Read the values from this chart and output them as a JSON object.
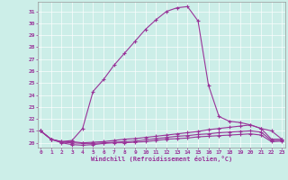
{
  "xlabel": "Windchill (Refroidissement éolien,°C)",
  "background_color": "#cceee8",
  "grid_color": "#aadddd",
  "line_color": "#993399",
  "x_ticks": [
    0,
    1,
    2,
    3,
    4,
    5,
    6,
    7,
    8,
    9,
    10,
    11,
    12,
    13,
    14,
    15,
    16,
    17,
    18,
    19,
    20,
    21,
    22,
    23
  ],
  "y_ticks": [
    20,
    21,
    22,
    23,
    24,
    25,
    26,
    27,
    28,
    29,
    30,
    31
  ],
  "ylim": [
    19.6,
    31.8
  ],
  "xlim": [
    -0.3,
    23.3
  ],
  "curve1": [
    21.0,
    20.3,
    20.1,
    20.2,
    21.2,
    24.3,
    25.3,
    26.5,
    27.5,
    28.5,
    29.5,
    30.3,
    31.0,
    31.3,
    31.4,
    30.2,
    24.8,
    22.2,
    21.8,
    21.7,
    21.5,
    21.2,
    20.3,
    20.3
  ],
  "curve2": [
    21.0,
    20.3,
    20.1,
    20.1,
    20.0,
    20.05,
    20.1,
    20.2,
    20.3,
    20.35,
    20.45,
    20.55,
    20.65,
    20.75,
    20.85,
    20.95,
    21.1,
    21.2,
    21.3,
    21.4,
    21.5,
    21.2,
    21.0,
    20.3
  ],
  "curve3": [
    21.0,
    20.3,
    20.05,
    20.0,
    19.95,
    19.95,
    20.0,
    20.05,
    20.1,
    20.15,
    20.25,
    20.35,
    20.45,
    20.55,
    20.6,
    20.7,
    20.75,
    20.85,
    20.9,
    20.95,
    21.0,
    20.9,
    20.2,
    20.2
  ],
  "curve4": [
    21.0,
    20.3,
    20.0,
    19.85,
    19.8,
    19.85,
    19.95,
    20.0,
    20.0,
    20.05,
    20.1,
    20.2,
    20.3,
    20.35,
    20.4,
    20.5,
    20.55,
    20.6,
    20.65,
    20.7,
    20.75,
    20.65,
    20.1,
    20.15
  ]
}
